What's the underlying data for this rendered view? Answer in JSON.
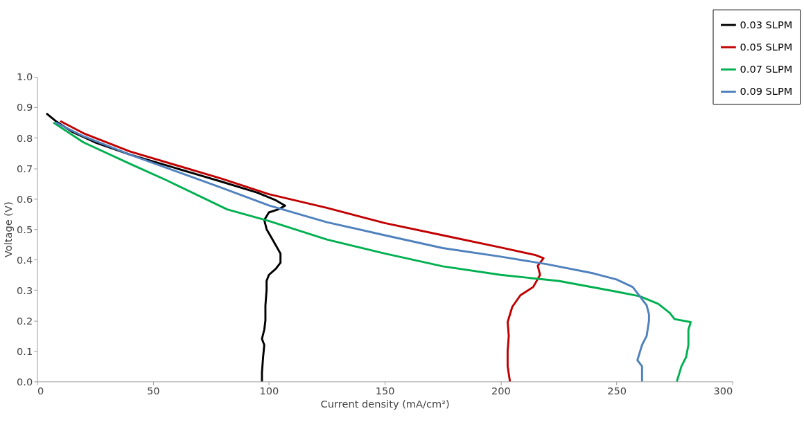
{
  "chart_data": {
    "type": "line",
    "xlabel": "Current density (mA/cm²)",
    "ylabel": "Voltage (V)",
    "xlim": [
      0,
      300
    ],
    "xticks": [
      0,
      50,
      100,
      150,
      200,
      250,
      300
    ],
    "ylim": [
      0,
      1
    ],
    "yticks": [
      {
        "value": 0,
        "label": "0.0"
      },
      0.1,
      0.2,
      0.3,
      0.4,
      0.5,
      0.6,
      0.7,
      0.8,
      0.9,
      {
        "value": 1,
        "label": "1.0"
      }
    ],
    "grid": false,
    "legend": "top right",
    "marker": "none",
    "line_style": "solid",
    "series": [
      {
        "name": "0.03 SLPM",
        "color": "#000000",
        "x": [
          4,
          8,
          15,
          25,
          40,
          60,
          80,
          95,
          103,
          107,
          104,
          100,
          98,
          99,
          102,
          105,
          105,
          103,
          100,
          99,
          99,
          98.5,
          98.5,
          98,
          97,
          98,
          97.5,
          97,
          97
        ],
        "values": [
          0.88,
          0.855,
          0.82,
          0.785,
          0.745,
          0.7,
          0.655,
          0.62,
          0.595,
          0.577,
          0.565,
          0.555,
          0.53,
          0.5,
          0.46,
          0.42,
          0.39,
          0.37,
          0.35,
          0.33,
          0.3,
          0.25,
          0.2,
          0.17,
          0.14,
          0.12,
          0.08,
          0.03,
          0.0
        ]
      },
      {
        "name": "0.05 SLPM",
        "color": "#c00000",
        "x": [
          10,
          20,
          40,
          60,
          80,
          100,
          125,
          150,
          175,
          200,
          215,
          218.5,
          216,
          217,
          214,
          208.5,
          205,
          203,
          203.5,
          203,
          203,
          204
        ],
        "values": [
          0.855,
          0.815,
          0.755,
          0.71,
          0.665,
          0.615,
          0.57,
          0.52,
          0.48,
          0.44,
          0.415,
          0.405,
          0.38,
          0.35,
          0.31,
          0.283,
          0.245,
          0.195,
          0.15,
          0.1,
          0.05,
          0.0
        ]
      },
      {
        "name": "0.07 SLPM",
        "color": "#00b050",
        "x": [
          7,
          20,
          40,
          56,
          82,
          100,
          125,
          150,
          175,
          200,
          225,
          250,
          260,
          268,
          273,
          275,
          282,
          281,
          281,
          280,
          278,
          276
        ],
        "values": [
          0.85,
          0.785,
          0.715,
          0.66,
          0.565,
          0.527,
          0.466,
          0.42,
          0.378,
          0.35,
          0.33,
          0.295,
          0.28,
          0.255,
          0.225,
          0.205,
          0.195,
          0.17,
          0.12,
          0.08,
          0.05,
          0.0
        ]
      },
      {
        "name": "0.09 SLPM",
        "color": "#4f81bd",
        "x": [
          8,
          20,
          40,
          60,
          80,
          100,
          125,
          150,
          175,
          200,
          220,
          240,
          250,
          257,
          260,
          263,
          264,
          264,
          263,
          261,
          259,
          261,
          261
        ],
        "values": [
          0.85,
          0.805,
          0.745,
          0.69,
          0.635,
          0.578,
          0.523,
          0.48,
          0.438,
          0.41,
          0.385,
          0.355,
          0.335,
          0.31,
          0.28,
          0.25,
          0.22,
          0.2,
          0.15,
          0.12,
          0.07,
          0.05,
          0.0
        ]
      }
    ]
  }
}
